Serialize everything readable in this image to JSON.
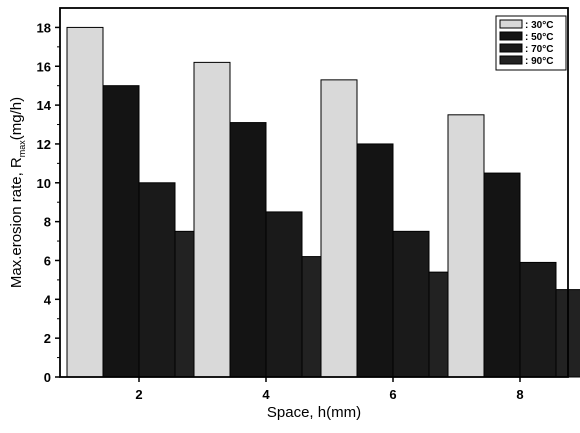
{
  "chart_data": {
    "type": "bar",
    "xlabel": "Space, h(mm)",
    "ylabel": "Max.erosion rate, R",
    "ylabel_subscript": "max",
    "ylabel_unit": "(mg/h)",
    "categories": [
      "2",
      "4",
      "6",
      "8"
    ],
    "ylim": [
      0,
      19
    ],
    "yticks": [
      0,
      2,
      4,
      6,
      8,
      10,
      12,
      14,
      16,
      18
    ],
    "legend_position": "top-right",
    "grid": false,
    "series": [
      {
        "name": ": 30°C",
        "color": "#d9d9d9",
        "values": [
          18.0,
          16.2,
          15.3,
          13.5
        ]
      },
      {
        "name": ": 50°C",
        "color": "#141414",
        "values": [
          15.0,
          13.1,
          12.0,
          10.5
        ]
      },
      {
        "name": ": 70°C",
        "color": "#1a1a1a",
        "values": [
          10.0,
          8.5,
          7.5,
          5.9
        ]
      },
      {
        "name": ": 90°C",
        "color": "#222222",
        "values": [
          7.5,
          6.2,
          5.4,
          4.5
        ]
      }
    ]
  }
}
